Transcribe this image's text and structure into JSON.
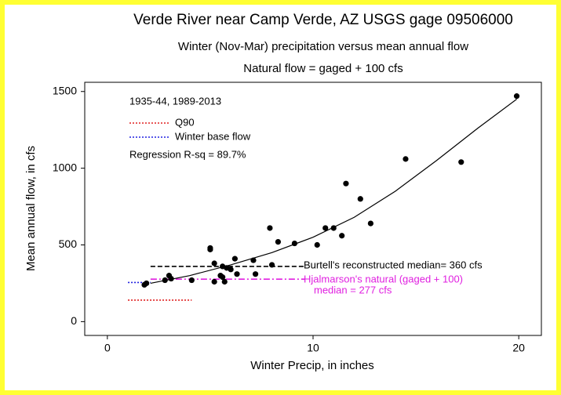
{
  "chart_data": {
    "type": "scatter",
    "title": "Verde River near Camp Verde, AZ USGS gage 09506000",
    "subtitle": "Winter (Nov-Mar) precipitation versus mean annual flow",
    "subtitle2": "Natural flow = gaged + 100 cfs",
    "x_label": "Winter Precip, in inches",
    "y_label": "Mean annual flow, in cfs",
    "xlim": [
      -1.1,
      21.1
    ],
    "ylim": [
      -90,
      1560
    ],
    "xticks": [
      0,
      10,
      20
    ],
    "yticks": [
      0,
      500,
      1000,
      1500
    ],
    "point_color": "#000000",
    "x": [
      1.8,
      1.9,
      2.8,
      3.0,
      3.1,
      4.1,
      5.0,
      5.0,
      5.2,
      5.2,
      5.5,
      5.6,
      5.6,
      5.7,
      5.8,
      6.0,
      6.2,
      6.3,
      7.1,
      7.2,
      7.9,
      8.0,
      8.3,
      9.1,
      10.2,
      10.6,
      11.0,
      11.4,
      11.6,
      12.3,
      12.8,
      14.5,
      17.2,
      19.9
    ],
    "values": [
      240,
      250,
      270,
      300,
      280,
      270,
      480,
      470,
      380,
      260,
      300,
      360,
      290,
      260,
      350,
      340,
      410,
      310,
      400,
      310,
      610,
      370,
      520,
      510,
      500,
      610,
      610,
      560,
      900,
      800,
      640,
      1060,
      1040,
      1470
    ],
    "curve": {
      "color": "#000000",
      "x": [
        2.1,
        4,
        6,
        8,
        10,
        12,
        14,
        16,
        18,
        19.9
      ],
      "values": [
        250,
        300,
        370,
        450,
        550,
        680,
        850,
        1050,
        1260,
        1450
      ]
    },
    "annotations": {
      "period": "1935-44, 1989-2013",
      "regression": "Regression R-sq = 89.7%",
      "hjalmarson_2": "median = 277 cfs"
    },
    "reference_lines": [
      {
        "name": "Q90",
        "color": "#e02020",
        "dash": "2,2",
        "value": 140,
        "x": [
          1,
          4.1
        ]
      },
      {
        "name": "Winter base flow",
        "color": "#2020e0",
        "dash": "2,2",
        "value": 255,
        "x": [
          1,
          2.1
        ]
      },
      {
        "name": "Burtell's reconstructed median= 360 cfs",
        "color": "#000000",
        "dash": "6,3",
        "value": 360,
        "x": [
          2.1,
          9.6
        ]
      },
      {
        "name": "Hjalmarson's natural (gaged + 100)",
        "color": "#e020e0",
        "dash": "8,3,2,3",
        "value": 277,
        "x": [
          2.1,
          9.6
        ]
      }
    ]
  }
}
